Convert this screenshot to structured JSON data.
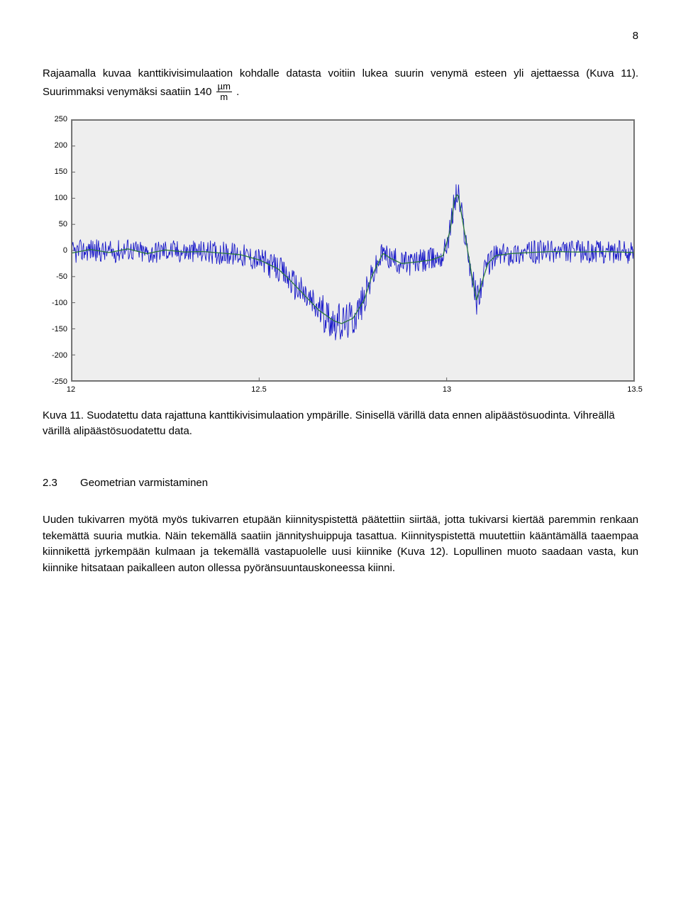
{
  "page_number": "8",
  "para1_a": "Rajaamalla kuvaa kanttikivisimulaation kohdalle datasta voitiin lukea suurin venymä esteen yli ajettaessa (Kuva 11). Suurimmaksi venymäksi saatiin ",
  "para1_value": "140",
  "para1_unit_num": "µm",
  "para1_unit_den": "m",
  "para1_end": ".",
  "chart": {
    "y_ticks": [
      -250,
      -200,
      -150,
      -100,
      -50,
      0,
      50,
      100,
      150,
      200,
      250
    ],
    "x_ticks": [
      12,
      12.5,
      13,
      13.5
    ],
    "ylim": [
      -250,
      250
    ],
    "xlim": [
      12,
      13.5
    ],
    "bg": "#eeeeee",
    "axis_color": "#606060",
    "raw_color": "#1818c8",
    "smooth_color": "#2a7a3a",
    "raw_noise_amp": 22,
    "baseline": [
      [
        12.0,
        -5
      ],
      [
        12.05,
        2
      ],
      [
        12.1,
        -4
      ],
      [
        12.15,
        3
      ],
      [
        12.2,
        -6
      ],
      [
        12.25,
        1
      ],
      [
        12.3,
        -3
      ],
      [
        12.35,
        -2
      ],
      [
        12.4,
        -5
      ],
      [
        12.45,
        -8
      ],
      [
        12.5,
        -18
      ],
      [
        12.55,
        -35
      ],
      [
        12.58,
        -55
      ],
      [
        12.62,
        -85
      ],
      [
        12.66,
        -115
      ],
      [
        12.7,
        -135
      ],
      [
        12.72,
        -140
      ],
      [
        12.75,
        -130
      ],
      [
        12.78,
        -95
      ],
      [
        12.8,
        -50
      ],
      [
        12.82,
        -20
      ],
      [
        12.83,
        -5
      ],
      [
        12.85,
        -15
      ],
      [
        12.88,
        -25
      ],
      [
        12.92,
        -22
      ],
      [
        12.96,
        -18
      ],
      [
        12.99,
        -10
      ],
      [
        13.01,
        40
      ],
      [
        13.02,
        95
      ],
      [
        13.03,
        110
      ],
      [
        13.05,
        25
      ],
      [
        13.07,
        -60
      ],
      [
        13.08,
        -95
      ],
      [
        13.09,
        -70
      ],
      [
        13.11,
        -25
      ],
      [
        13.13,
        -10
      ],
      [
        13.17,
        -6
      ],
      [
        13.22,
        -4
      ],
      [
        13.28,
        -2
      ],
      [
        13.35,
        -3
      ],
      [
        13.42,
        -2
      ],
      [
        13.5,
        -4
      ]
    ]
  },
  "caption": "Kuva 11. Suodatettu data rajattuna kanttikivisimulaation ympärille. Sinisellä värillä data ennen alipäästösuodinta. Vihreällä värillä alipäästösuodatettu data.",
  "section": {
    "num": "2.3",
    "title": "Geometrian varmistaminen"
  },
  "para2": "Uuden tukivarren myötä myös tukivarren etupään kiinnityspistettä päätettiin siirtää, jotta tukivarsi kiertää paremmin renkaan tekemättä suuria mutkia. Näin tekemällä saatiin jännityshuippuja tasattua. Kiinnityspistettä muutettiin kääntämällä taaempaa kiinnikettä jyrkempään kulmaan ja tekemällä vastapuolelle uusi kiinnike (Kuva 12). Lopullinen muoto saadaan vasta, kun kiinnike hitsataan paikalleen auton ollessa pyöränsuuntauskoneessa kiinni."
}
